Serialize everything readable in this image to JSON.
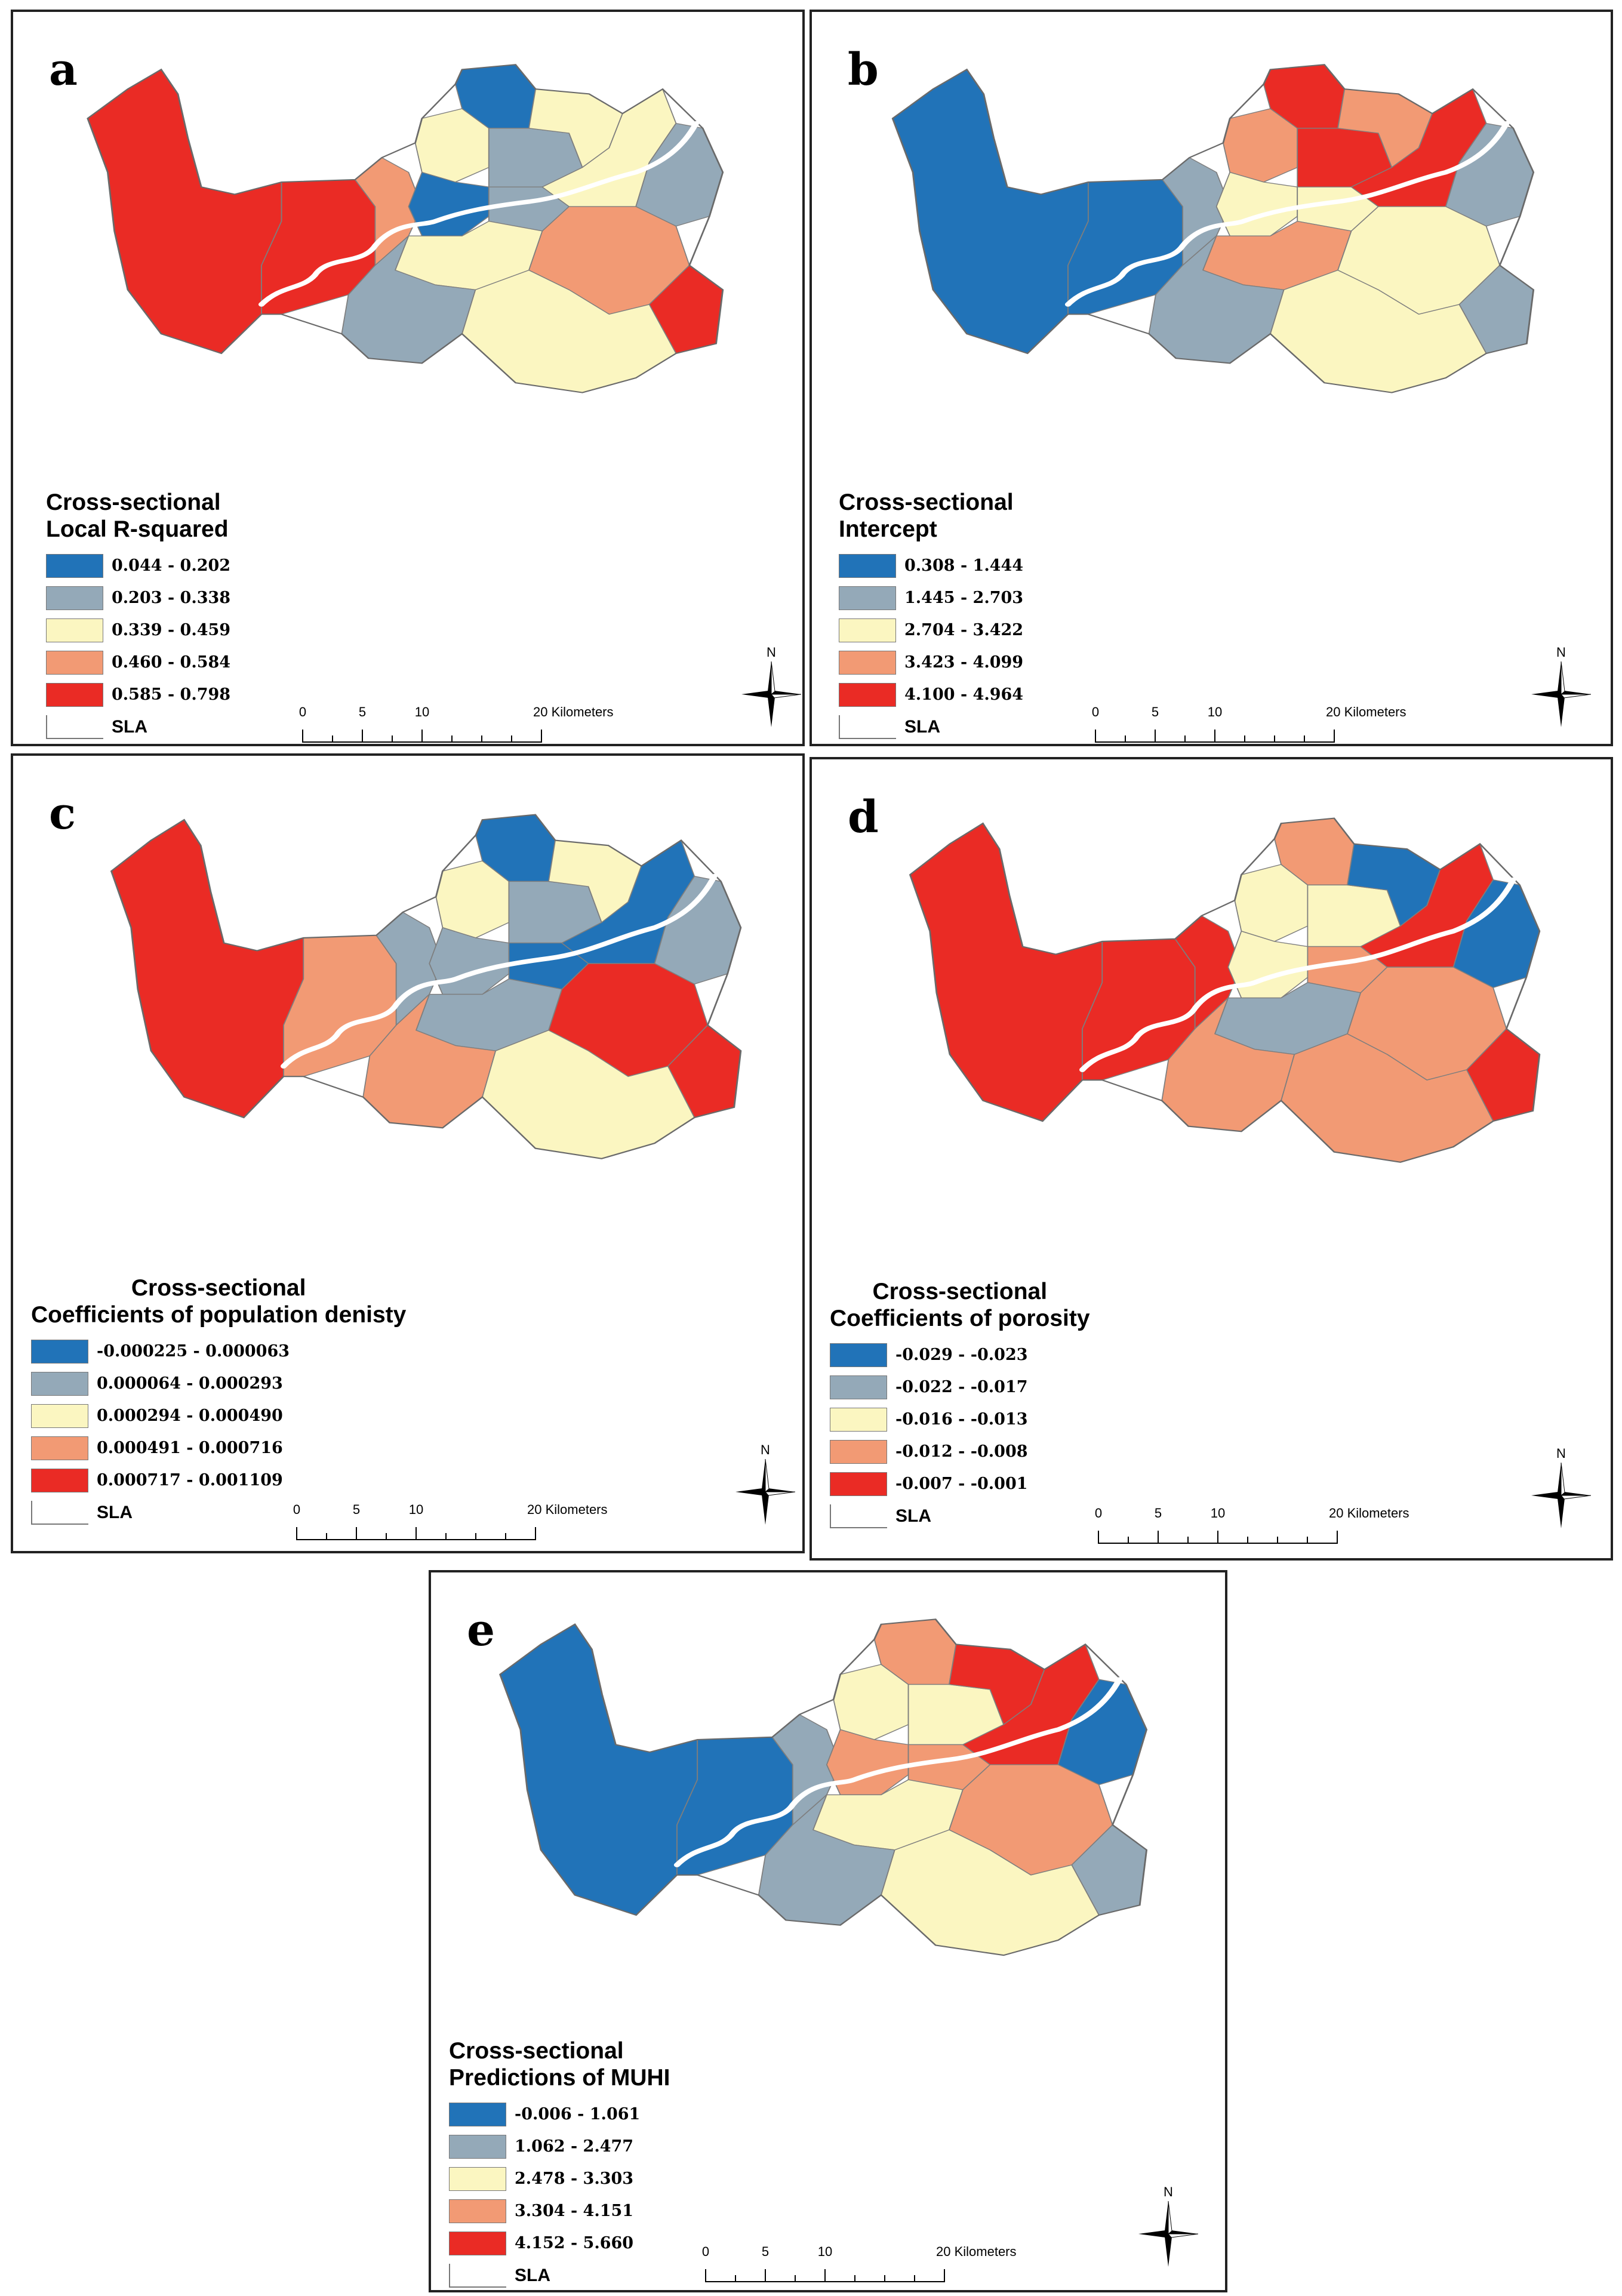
{
  "colors": {
    "class1": "#2173b8",
    "class2": "#94a9b8",
    "class3": "#fbf6c1",
    "class4": "#f29a74",
    "class5": "#ea2b25",
    "boundary": "#7e7e7e",
    "river": "#ffffff"
  },
  "scalebar": {
    "ticks": [
      "0",
      "5",
      "10",
      "20 Kilometers"
    ]
  },
  "north_label": "N",
  "sla_label": "SLA",
  "panels": {
    "a": {
      "letter": "a",
      "title_lines": [
        "Cross-sectional",
        "Local R-squared"
      ],
      "legend": [
        "0.044 - 0.202",
        "0.203 - 0.338",
        "0.339 - 0.459",
        "0.460 - 0.584",
        "0.585 - 0.798"
      ],
      "colors": [
        "#ea2b25",
        "#ea2b25",
        "#f29a74",
        "#fbf6c1",
        "#2173b8",
        "#94a9b8",
        "#fbf6c1",
        "#2173b8",
        "#94a9b8",
        "#fbf6c1",
        "#94a9b8",
        "#fbf6c1",
        "#f29a74",
        "#ea2b25",
        "#94a9b8",
        "#fbf6c1"
      ]
    },
    "b": {
      "letter": "b",
      "title_lines": [
        "Cross-sectional",
        "Intercept"
      ],
      "legend": [
        "0.308 - 1.444",
        "1.445 - 2.703",
        "2.704 - 3.422",
        "3.423 - 4.099",
        "4.100 - 4.964"
      ],
      "colors": [
        "#2173b8",
        "#2173b8",
        "#94a9b8",
        "#f29a74",
        "#ea2b25",
        "#ea2b25",
        "#f29a74",
        "#fbf6c1",
        "#fbf6c1",
        "#ea2b25",
        "#94a9b8",
        "#f29a74",
        "#fbf6c1",
        "#94a9b8",
        "#94a9b8",
        "#fbf6c1"
      ]
    },
    "c": {
      "letter": "c",
      "title_lines": [
        "Cross-sectional",
        "Coefficients of population denisty"
      ],
      "legend": [
        "-0.000225 - 0.000063",
        "0.000064 - 0.000293",
        "0.000294 - 0.000490",
        "0.000491 - 0.000716",
        "0.000717 - 0.001109"
      ],
      "colors": [
        "#ea2b25",
        "#f29a74",
        "#94a9b8",
        "#fbf6c1",
        "#2173b8",
        "#94a9b8",
        "#fbf6c1",
        "#94a9b8",
        "#2173b8",
        "#2173b8",
        "#94a9b8",
        "#94a9b8",
        "#ea2b25",
        "#ea2b25",
        "#f29a74",
        "#fbf6c1"
      ]
    },
    "d": {
      "letter": "d",
      "title_lines": [
        "Cross-sectional",
        "Coefficients of porosity"
      ],
      "legend": [
        "-0.029 - -0.023",
        "-0.022 - -0.017",
        "-0.016 - -0.013",
        "-0.012 - -0.008",
        "-0.007 - -0.001"
      ],
      "colors": [
        "#ea2b25",
        "#ea2b25",
        "#ea2b25",
        "#fbf6c1",
        "#f29a74",
        "#fbf6c1",
        "#2173b8",
        "#fbf6c1",
        "#f29a74",
        "#ea2b25",
        "#2173b8",
        "#94a9b8",
        "#f29a74",
        "#ea2b25",
        "#f29a74",
        "#f29a74"
      ]
    },
    "e": {
      "letter": "e",
      "title_lines": [
        "Cross-sectional",
        "Predictions of MUHI"
      ],
      "legend": [
        "-0.006 - 1.061",
        "1.062 - 2.477",
        "2.478 - 3.303",
        "3.304 - 4.151",
        "4.152 - 5.660"
      ],
      "colors": [
        "#2173b8",
        "#2173b8",
        "#94a9b8",
        "#fbf6c1",
        "#f29a74",
        "#fbf6c1",
        "#ea2b25",
        "#f29a74",
        "#f29a74",
        "#ea2b25",
        "#2173b8",
        "#fbf6c1",
        "#f29a74",
        "#94a9b8",
        "#94a9b8",
        "#fbf6c1"
      ]
    }
  }
}
